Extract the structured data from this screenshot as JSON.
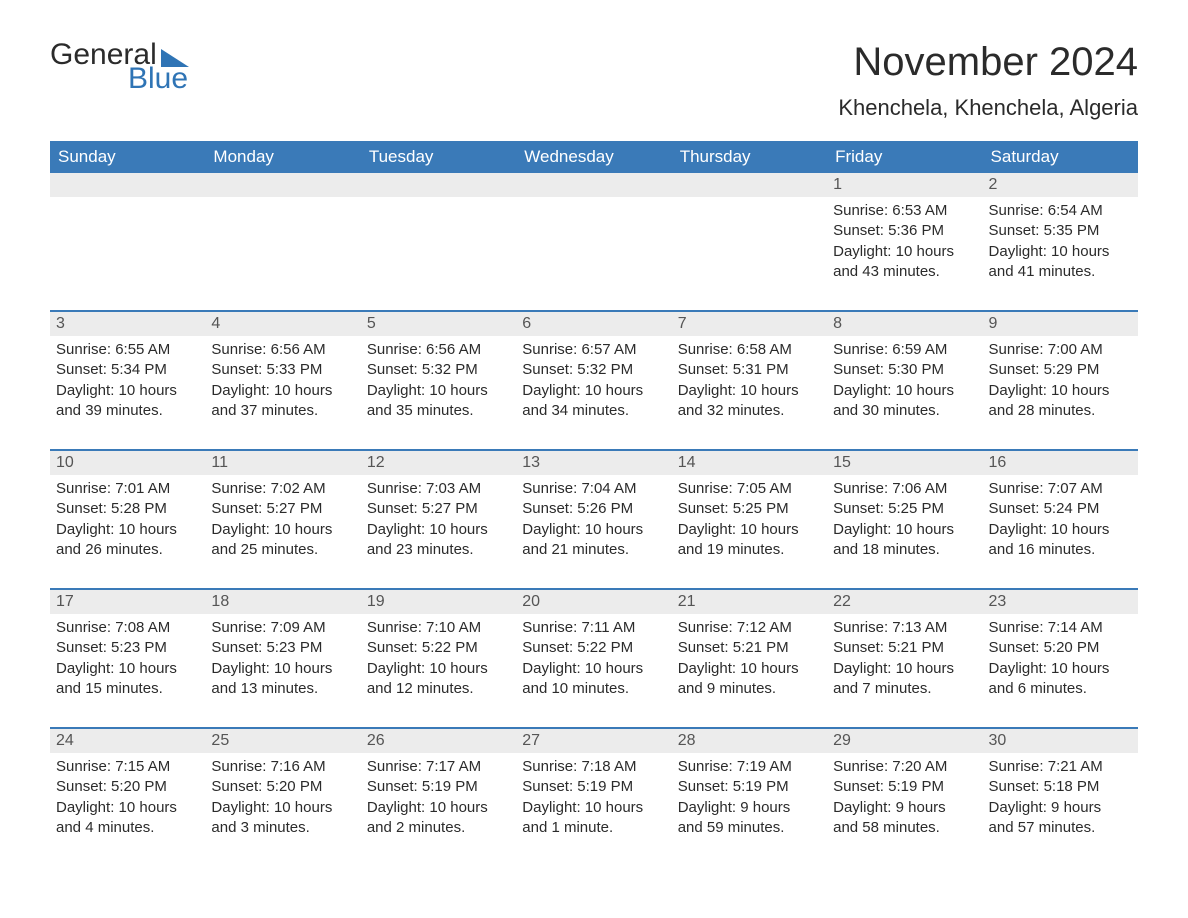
{
  "logo": {
    "text_general": "General",
    "text_blue": "Blue"
  },
  "title": "November 2024",
  "location": "Khenchela, Khenchela, Algeria",
  "colors": {
    "brand_blue": "#3a7ab8",
    "logo_blue": "#2f74b5",
    "header_bg": "#3a7ab8",
    "header_text": "#ffffff",
    "daynum_bg": "#ececec",
    "daynum_text": "#555555",
    "body_text": "#2b2b2b",
    "page_bg": "#ffffff"
  },
  "typography": {
    "title_fontsize": 40,
    "location_fontsize": 22,
    "header_fontsize": 17,
    "daynum_fontsize": 16,
    "body_fontsize": 15,
    "font_family": "Arial"
  },
  "columns": [
    "Sunday",
    "Monday",
    "Tuesday",
    "Wednesday",
    "Thursday",
    "Friday",
    "Saturday"
  ],
  "weeks": [
    [
      null,
      null,
      null,
      null,
      null,
      {
        "n": "1",
        "sunrise": "Sunrise: 6:53 AM",
        "sunset": "Sunset: 5:36 PM",
        "d1": "Daylight: 10 hours",
        "d2": "and 43 minutes."
      },
      {
        "n": "2",
        "sunrise": "Sunrise: 6:54 AM",
        "sunset": "Sunset: 5:35 PM",
        "d1": "Daylight: 10 hours",
        "d2": "and 41 minutes."
      }
    ],
    [
      {
        "n": "3",
        "sunrise": "Sunrise: 6:55 AM",
        "sunset": "Sunset: 5:34 PM",
        "d1": "Daylight: 10 hours",
        "d2": "and 39 minutes."
      },
      {
        "n": "4",
        "sunrise": "Sunrise: 6:56 AM",
        "sunset": "Sunset: 5:33 PM",
        "d1": "Daylight: 10 hours",
        "d2": "and 37 minutes."
      },
      {
        "n": "5",
        "sunrise": "Sunrise: 6:56 AM",
        "sunset": "Sunset: 5:32 PM",
        "d1": "Daylight: 10 hours",
        "d2": "and 35 minutes."
      },
      {
        "n": "6",
        "sunrise": "Sunrise: 6:57 AM",
        "sunset": "Sunset: 5:32 PM",
        "d1": "Daylight: 10 hours",
        "d2": "and 34 minutes."
      },
      {
        "n": "7",
        "sunrise": "Sunrise: 6:58 AM",
        "sunset": "Sunset: 5:31 PM",
        "d1": "Daylight: 10 hours",
        "d2": "and 32 minutes."
      },
      {
        "n": "8",
        "sunrise": "Sunrise: 6:59 AM",
        "sunset": "Sunset: 5:30 PM",
        "d1": "Daylight: 10 hours",
        "d2": "and 30 minutes."
      },
      {
        "n": "9",
        "sunrise": "Sunrise: 7:00 AM",
        "sunset": "Sunset: 5:29 PM",
        "d1": "Daylight: 10 hours",
        "d2": "and 28 minutes."
      }
    ],
    [
      {
        "n": "10",
        "sunrise": "Sunrise: 7:01 AM",
        "sunset": "Sunset: 5:28 PM",
        "d1": "Daylight: 10 hours",
        "d2": "and 26 minutes."
      },
      {
        "n": "11",
        "sunrise": "Sunrise: 7:02 AM",
        "sunset": "Sunset: 5:27 PM",
        "d1": "Daylight: 10 hours",
        "d2": "and 25 minutes."
      },
      {
        "n": "12",
        "sunrise": "Sunrise: 7:03 AM",
        "sunset": "Sunset: 5:27 PM",
        "d1": "Daylight: 10 hours",
        "d2": "and 23 minutes."
      },
      {
        "n": "13",
        "sunrise": "Sunrise: 7:04 AM",
        "sunset": "Sunset: 5:26 PM",
        "d1": "Daylight: 10 hours",
        "d2": "and 21 minutes."
      },
      {
        "n": "14",
        "sunrise": "Sunrise: 7:05 AM",
        "sunset": "Sunset: 5:25 PM",
        "d1": "Daylight: 10 hours",
        "d2": "and 19 minutes."
      },
      {
        "n": "15",
        "sunrise": "Sunrise: 7:06 AM",
        "sunset": "Sunset: 5:25 PM",
        "d1": "Daylight: 10 hours",
        "d2": "and 18 minutes."
      },
      {
        "n": "16",
        "sunrise": "Sunrise: 7:07 AM",
        "sunset": "Sunset: 5:24 PM",
        "d1": "Daylight: 10 hours",
        "d2": "and 16 minutes."
      }
    ],
    [
      {
        "n": "17",
        "sunrise": "Sunrise: 7:08 AM",
        "sunset": "Sunset: 5:23 PM",
        "d1": "Daylight: 10 hours",
        "d2": "and 15 minutes."
      },
      {
        "n": "18",
        "sunrise": "Sunrise: 7:09 AM",
        "sunset": "Sunset: 5:23 PM",
        "d1": "Daylight: 10 hours",
        "d2": "and 13 minutes."
      },
      {
        "n": "19",
        "sunrise": "Sunrise: 7:10 AM",
        "sunset": "Sunset: 5:22 PM",
        "d1": "Daylight: 10 hours",
        "d2": "and 12 minutes."
      },
      {
        "n": "20",
        "sunrise": "Sunrise: 7:11 AM",
        "sunset": "Sunset: 5:22 PM",
        "d1": "Daylight: 10 hours",
        "d2": "and 10 minutes."
      },
      {
        "n": "21",
        "sunrise": "Sunrise: 7:12 AM",
        "sunset": "Sunset: 5:21 PM",
        "d1": "Daylight: 10 hours",
        "d2": "and 9 minutes."
      },
      {
        "n": "22",
        "sunrise": "Sunrise: 7:13 AM",
        "sunset": "Sunset: 5:21 PM",
        "d1": "Daylight: 10 hours",
        "d2": "and 7 minutes."
      },
      {
        "n": "23",
        "sunrise": "Sunrise: 7:14 AM",
        "sunset": "Sunset: 5:20 PM",
        "d1": "Daylight: 10 hours",
        "d2": "and 6 minutes."
      }
    ],
    [
      {
        "n": "24",
        "sunrise": "Sunrise: 7:15 AM",
        "sunset": "Sunset: 5:20 PM",
        "d1": "Daylight: 10 hours",
        "d2": "and 4 minutes."
      },
      {
        "n": "25",
        "sunrise": "Sunrise: 7:16 AM",
        "sunset": "Sunset: 5:20 PM",
        "d1": "Daylight: 10 hours",
        "d2": "and 3 minutes."
      },
      {
        "n": "26",
        "sunrise": "Sunrise: 7:17 AM",
        "sunset": "Sunset: 5:19 PM",
        "d1": "Daylight: 10 hours",
        "d2": "and 2 minutes."
      },
      {
        "n": "27",
        "sunrise": "Sunrise: 7:18 AM",
        "sunset": "Sunset: 5:19 PM",
        "d1": "Daylight: 10 hours",
        "d2": "and 1 minute."
      },
      {
        "n": "28",
        "sunrise": "Sunrise: 7:19 AM",
        "sunset": "Sunset: 5:19 PM",
        "d1": "Daylight: 9 hours",
        "d2": "and 59 minutes."
      },
      {
        "n": "29",
        "sunrise": "Sunrise: 7:20 AM",
        "sunset": "Sunset: 5:19 PM",
        "d1": "Daylight: 9 hours",
        "d2": "and 58 minutes."
      },
      {
        "n": "30",
        "sunrise": "Sunrise: 7:21 AM",
        "sunset": "Sunset: 5:18 PM",
        "d1": "Daylight: 9 hours",
        "d2": "and 57 minutes."
      }
    ]
  ]
}
